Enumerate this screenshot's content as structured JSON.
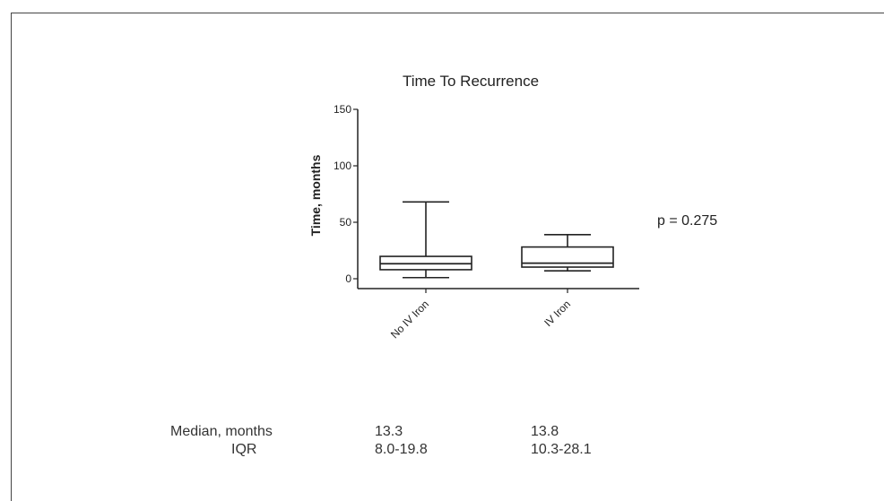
{
  "chart_data": {
    "type": "boxplot",
    "title": "Time To Recurrence",
    "ylabel": "Time, months",
    "ylim": [
      0,
      150
    ],
    "yticks": [
      0,
      50,
      100,
      150
    ],
    "categories": [
      "No IV Iron",
      "IV Iron"
    ],
    "boxes": [
      {
        "name": "No IV Iron",
        "min": 1,
        "q1": 8.0,
        "median": 13.3,
        "q3": 19.8,
        "max": 68
      },
      {
        "name": "IV Iron",
        "min": 7,
        "q1": 10.3,
        "median": 13.8,
        "q3": 28.1,
        "max": 39
      }
    ],
    "annotation": "p = 0.275",
    "colors": {
      "stroke": "#222222"
    }
  },
  "table": {
    "median_label": "Median, months",
    "iqr_label": "IQR",
    "median_values": [
      "13.3",
      "13.8"
    ],
    "iqr_values": [
      "8.0-19.8",
      "10.3-28.1"
    ]
  }
}
